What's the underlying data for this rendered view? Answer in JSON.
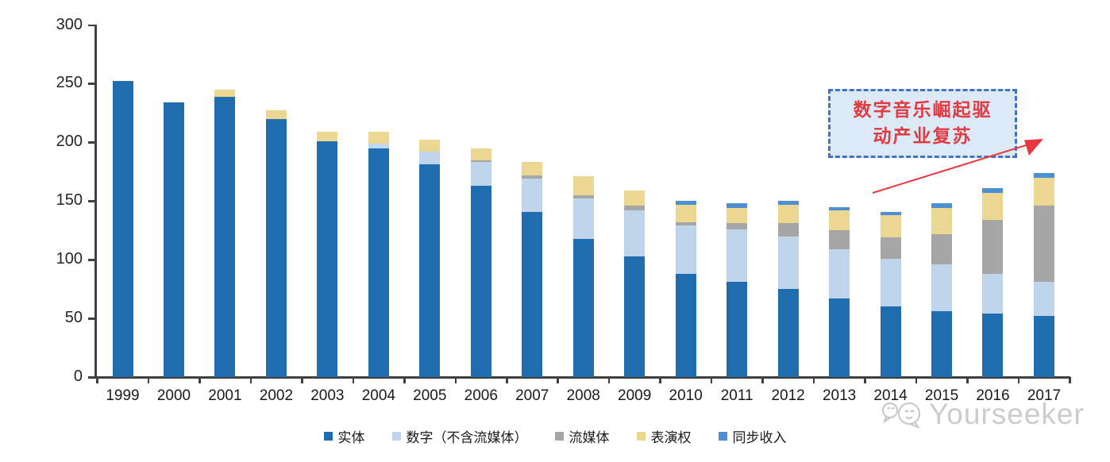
{
  "chart_data": {
    "type": "bar",
    "stacked": true,
    "title": "",
    "xlabel": "",
    "ylabel": "",
    "categories": [
      "1999",
      "2000",
      "2001",
      "2002",
      "2003",
      "2004",
      "2005",
      "2006",
      "2007",
      "2008",
      "2009",
      "2010",
      "2011",
      "2012",
      "2013",
      "2014",
      "2015",
      "2016",
      "2017"
    ],
    "series": [
      {
        "name": "实体",
        "color": "#1f6dae",
        "values": [
          252,
          234,
          239,
          220,
          201,
          195,
          181,
          163,
          141,
          118,
          103,
          88,
          81,
          75,
          67,
          60,
          56,
          54,
          52
        ]
      },
      {
        "name": "数字（不含流媒体）",
        "color": "#bfd5ec",
        "values": [
          0,
          0,
          0,
          0,
          0,
          4,
          11,
          20,
          28,
          34,
          39,
          41,
          45,
          45,
          42,
          41,
          40,
          34,
          29
        ]
      },
      {
        "name": "流媒体",
        "color": "#a6a6a6",
        "values": [
          0,
          0,
          0,
          0,
          0,
          0,
          0,
          2,
          3,
          3,
          4,
          3,
          5,
          11,
          16,
          18,
          26,
          46,
          65
        ]
      },
      {
        "name": "表演权",
        "color": "#ebd692",
        "values": [
          0,
          0,
          6,
          7,
          8,
          10,
          10,
          10,
          11,
          16,
          13,
          15,
          13,
          16,
          17,
          19,
          22,
          23,
          24
        ]
      },
      {
        "name": "同步收入",
        "color": "#4d8fd1",
        "values": [
          0,
          0,
          0,
          0,
          0,
          0,
          0,
          0,
          0,
          0,
          0,
          3,
          4,
          3,
          3,
          3,
          4,
          4,
          4
        ]
      }
    ],
    "y_ticks": [
      0,
      50,
      100,
      150,
      200,
      250,
      300
    ],
    "ylim": [
      0,
      300
    ],
    "grid": false,
    "legend_position": "bottom"
  },
  "annotation": {
    "text": "数字音乐崛起驱动产业复苏",
    "line1": "数字音乐崛起驱",
    "line2": "动产业复苏",
    "box_border_color": "#4472c4",
    "box_fill_color": "#dce9f7",
    "text_color": "#e13b41",
    "arrow_color": "#e8383f"
  },
  "watermark": {
    "text": "Yourseeker",
    "logo": "chat-bubbles-icon",
    "color": "#cccccc"
  },
  "axis": {
    "color": "#3f3f3f"
  }
}
